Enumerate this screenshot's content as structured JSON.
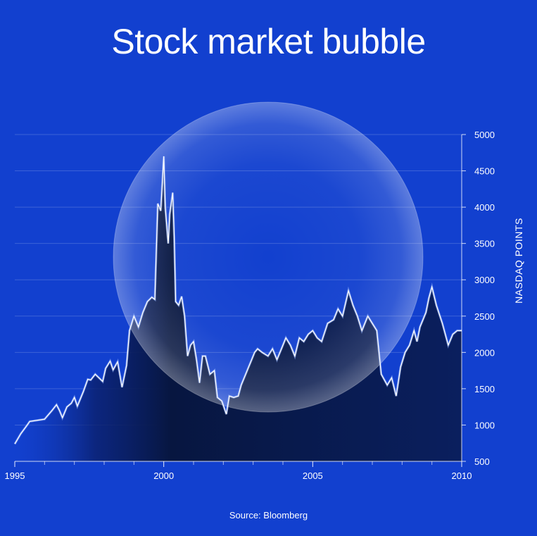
{
  "title": "Stock market bubble",
  "source": "Source: Bloomberg",
  "colors": {
    "background": "#1240cf",
    "line": "#ffffff",
    "fill_dark": "#071640",
    "bubble": "#ffffff"
  },
  "chart_data": {
    "type": "area",
    "title": "Stock market bubble",
    "xlabel": "",
    "ylabel": "NASDAQ POINTS",
    "xlim": [
      1995,
      2010
    ],
    "ylim": [
      500,
      5000
    ],
    "x_ticks": [
      1995,
      2000,
      2005,
      2010
    ],
    "y_ticks": [
      500,
      1000,
      1500,
      2000,
      2500,
      3000,
      3500,
      4000,
      4500,
      5000
    ],
    "grid": true,
    "y_axis_side": "right",
    "series": [
      {
        "x": [
          1995.0,
          1995.2,
          1995.4,
          1995.5,
          1996.0,
          1996.25,
          1996.4,
          1996.5,
          1996.6,
          1996.75,
          1996.9,
          1997.0,
          1997.1,
          1997.3,
          1997.45,
          1997.55,
          1997.7,
          1997.8,
          1997.95,
          1998.05,
          1998.2,
          1998.3,
          1998.45,
          1998.6,
          1998.75,
          1998.85,
          1999.0,
          1999.15,
          1999.3,
          1999.45,
          1999.6,
          1999.7,
          1999.8,
          1999.9,
          2000.0,
          2000.05,
          2000.15,
          2000.2,
          2000.3,
          2000.35,
          2000.4,
          2000.5,
          2000.6,
          2000.7,
          2000.8,
          2000.9,
          2001.0,
          2001.1,
          2001.2,
          2001.3,
          2001.4,
          2001.55,
          2001.7,
          2001.8,
          2001.95,
          2002.1,
          2002.2,
          2002.35,
          2002.5,
          2002.6,
          2002.75,
          2002.85,
          2002.95,
          2003.05,
          2003.15,
          2003.3,
          2003.5,
          2003.65,
          2003.8,
          2003.95,
          2004.1,
          2004.25,
          2004.4,
          2004.55,
          2004.7,
          2004.85,
          2005.0,
          2005.15,
          2005.3,
          2005.5,
          2005.7,
          2005.85,
          2006.0,
          2006.2,
          2006.35,
          2006.5,
          2006.65,
          2006.85,
          2007.0,
          2007.15,
          2007.3,
          2007.5,
          2007.65,
          2007.8,
          2007.95,
          2008.1,
          2008.25,
          2008.4,
          2008.5,
          2008.6,
          2008.7,
          2008.8,
          2008.9,
          2009.0,
          2009.15,
          2009.35,
          2009.55,
          2009.7,
          2009.85,
          2010.0
        ],
        "values": [
          740,
          880,
          990,
          1050,
          1080,
          1200,
          1280,
          1200,
          1100,
          1250,
          1300,
          1380,
          1260,
          1460,
          1630,
          1620,
          1700,
          1660,
          1600,
          1780,
          1880,
          1760,
          1870,
          1520,
          1820,
          2300,
          2500,
          2350,
          2550,
          2700,
          2760,
          2730,
          4050,
          3950,
          4700,
          4000,
          3500,
          3900,
          4200,
          3600,
          2700,
          2650,
          2770,
          2500,
          1950,
          2100,
          2150,
          1900,
          1580,
          1950,
          1950,
          1700,
          1750,
          1380,
          1330,
          1150,
          1400,
          1380,
          1400,
          1550,
          1700,
          1800,
          1900,
          2000,
          2050,
          2000,
          1950,
          2050,
          1900,
          2050,
          2200,
          2100,
          1950,
          2200,
          2150,
          2250,
          2300,
          2200,
          2150,
          2400,
          2450,
          2600,
          2500,
          2850,
          2650,
          2500,
          2300,
          2500,
          2400,
          2300,
          1700,
          1550,
          1650,
          1400,
          1800,
          2000,
          2100,
          2300,
          2150,
          2350,
          2450,
          2550,
          2750,
          2900,
          2650,
          2400,
          2100,
          2250,
          2300,
          2300
        ],
        "name": ""
      }
    ]
  }
}
